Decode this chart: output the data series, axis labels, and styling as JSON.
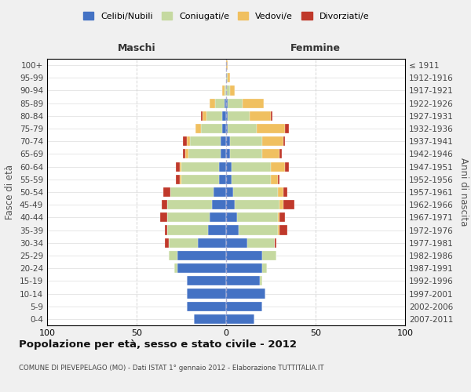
{
  "age_groups": [
    "0-4",
    "5-9",
    "10-14",
    "15-19",
    "20-24",
    "25-29",
    "30-34",
    "35-39",
    "40-44",
    "45-49",
    "50-54",
    "55-59",
    "60-64",
    "65-69",
    "70-74",
    "75-79",
    "80-84",
    "85-89",
    "90-94",
    "95-99",
    "100+"
  ],
  "birth_years": [
    "2007-2011",
    "2002-2006",
    "1997-2001",
    "1992-1996",
    "1987-1991",
    "1982-1986",
    "1977-1981",
    "1972-1976",
    "1967-1971",
    "1962-1966",
    "1957-1961",
    "1952-1956",
    "1947-1951",
    "1942-1946",
    "1937-1941",
    "1932-1936",
    "1927-1931",
    "1922-1926",
    "1917-1921",
    "1912-1916",
    "≤ 1911"
  ],
  "colors": {
    "celibe": "#4472c4",
    "coniugato": "#c5d9a0",
    "vedovo": "#f0c060",
    "divorziato": "#c0392b"
  },
  "maschi": {
    "celibe": [
      18,
      22,
      22,
      22,
      27,
      27,
      16,
      10,
      9,
      8,
      7,
      4,
      4,
      3,
      3,
      2,
      2,
      1,
      0,
      0,
      0
    ],
    "coniugato": [
      0,
      0,
      0,
      0,
      2,
      5,
      16,
      23,
      24,
      25,
      24,
      21,
      21,
      18,
      17,
      12,
      9,
      5,
      1,
      0,
      0
    ],
    "vedovo": [
      0,
      0,
      0,
      0,
      0,
      0,
      0,
      0,
      0,
      0,
      0,
      1,
      1,
      2,
      2,
      3,
      2,
      3,
      1,
      0,
      0
    ],
    "divorziato": [
      0,
      0,
      0,
      0,
      0,
      0,
      2,
      1,
      4,
      3,
      4,
      2,
      2,
      1,
      2,
      0,
      1,
      0,
      0,
      0,
      0
    ]
  },
  "femmine": {
    "celibe": [
      16,
      20,
      22,
      19,
      20,
      20,
      12,
      7,
      6,
      5,
      4,
      3,
      3,
      2,
      2,
      1,
      1,
      1,
      0,
      0,
      0
    ],
    "coniugato": [
      0,
      0,
      0,
      1,
      3,
      8,
      15,
      22,
      23,
      25,
      25,
      22,
      22,
      18,
      18,
      16,
      12,
      8,
      2,
      1,
      0
    ],
    "vedovo": [
      0,
      0,
      0,
      0,
      0,
      0,
      0,
      1,
      1,
      2,
      3,
      4,
      8,
      10,
      12,
      16,
      12,
      12,
      3,
      1,
      1
    ],
    "divorziato": [
      0,
      0,
      0,
      0,
      0,
      0,
      1,
      4,
      3,
      6,
      2,
      1,
      2,
      1,
      1,
      2,
      1,
      0,
      0,
      0,
      0
    ]
  },
  "xlim": 100,
  "title": "Popolazione per età, sesso e stato civile - 2012",
  "subtitle": "COMUNE DI PIEVEPELAGO (MO) - Dati ISTAT 1° gennaio 2012 - Elaborazione TUTTITALIA.IT",
  "xlabel_left": "Maschi",
  "xlabel_right": "Femmine",
  "ylabel_left": "Fasce di età",
  "ylabel_right": "Anni di nascita",
  "legend_labels": [
    "Celibi/Nubili",
    "Coniugati/e",
    "Vedovi/e",
    "Divorziati/e"
  ],
  "background_color": "#f0f0f0",
  "plot_bg": "#ffffff"
}
